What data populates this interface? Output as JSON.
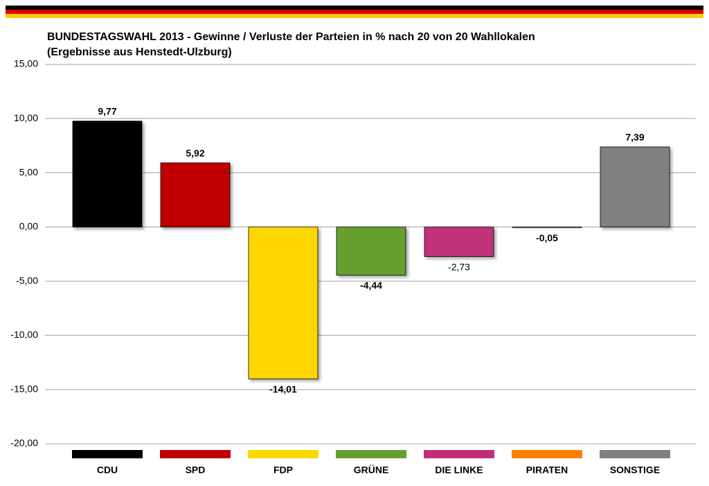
{
  "chart_data": {
    "type": "bar",
    "title": "BUNDESTAGSWAHL 2013 - Gewinne / Verluste der Parteien in % nach 20 von 20 Wahllokalen",
    "subtitle": "(Ergebnisse aus Henstedt-Ulzburg)",
    "categories": [
      "CDU",
      "SPD",
      "FDP",
      "GRÜNE",
      "DIE LINKE",
      "PIRATEN",
      "SONSTIGE"
    ],
    "values": [
      9.77,
      5.92,
      -14.01,
      -4.44,
      -2.73,
      -0.05,
      7.39
    ],
    "value_labels": [
      "9,77",
      "5,92",
      "-14,01",
      "-4,44",
      "-2,73",
      "-0,05",
      "7,39"
    ],
    "colors": [
      "#000000",
      "#c00000",
      "#ffd700",
      "#65a02f",
      "#c0307a",
      "#ff8000",
      "#808080"
    ],
    "ylim": [
      -20,
      15
    ],
    "yticks": [
      {
        "value": -20,
        "label": "-20,00"
      },
      {
        "value": -15,
        "label": "-15,00"
      },
      {
        "value": -10,
        "label": "-10,00"
      },
      {
        "value": -5,
        "label": "-5,00"
      },
      {
        "value": 0,
        "label": "0,00"
      },
      {
        "value": 5,
        "label": "5,00"
      },
      {
        "value": 10,
        "label": "10,00"
      },
      {
        "value": 15,
        "label": "15,00"
      }
    ],
    "grid": true
  }
}
